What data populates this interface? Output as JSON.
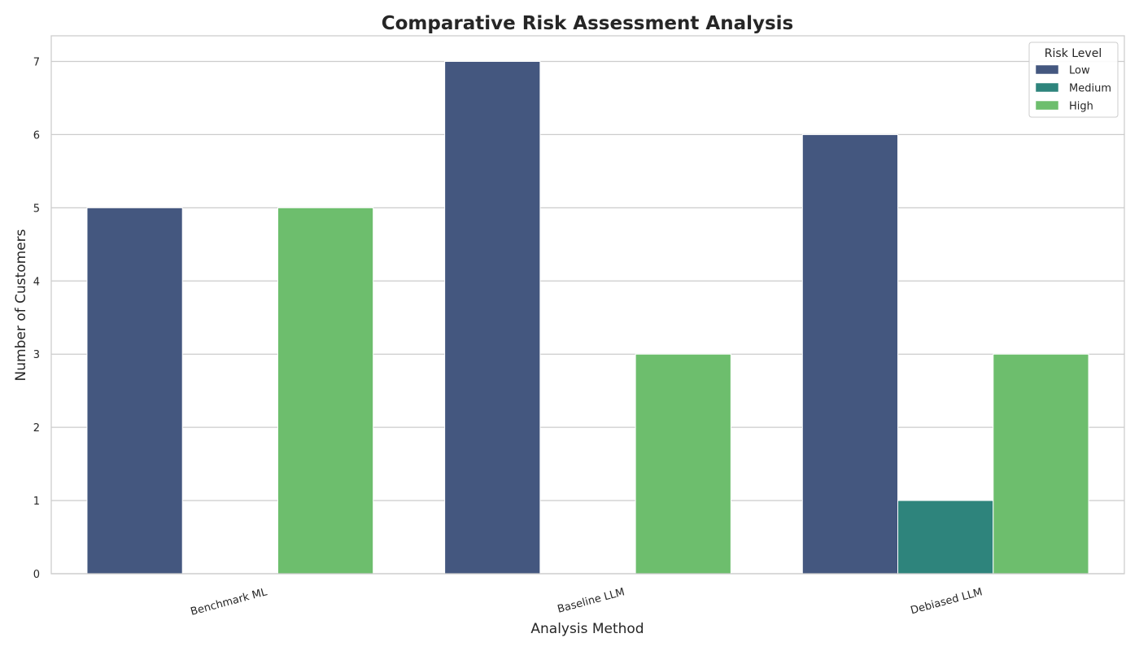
{
  "chart_data": {
    "type": "bar",
    "title": "Comparative Risk Assessment Analysis",
    "xlabel": "Analysis Method",
    "ylabel": "Number of Customers",
    "categories": [
      "Benchmark ML",
      "Baseline LLM",
      "Debiased LLM"
    ],
    "series": [
      {
        "name": "Low",
        "color": "#44577f",
        "values": [
          5,
          7,
          6
        ]
      },
      {
        "name": "Medium",
        "color": "#2e847c",
        "values": [
          0,
          0,
          1
        ]
      },
      {
        "name": "High",
        "color": "#6dbe6d",
        "values": [
          5,
          3,
          3
        ]
      }
    ],
    "ylim": [
      0,
      7.35
    ],
    "yticks": [
      0,
      1,
      2,
      3,
      4,
      5,
      6,
      7
    ],
    "grid": true,
    "legend": {
      "title": "Risk Level",
      "placement": "top-right"
    }
  }
}
